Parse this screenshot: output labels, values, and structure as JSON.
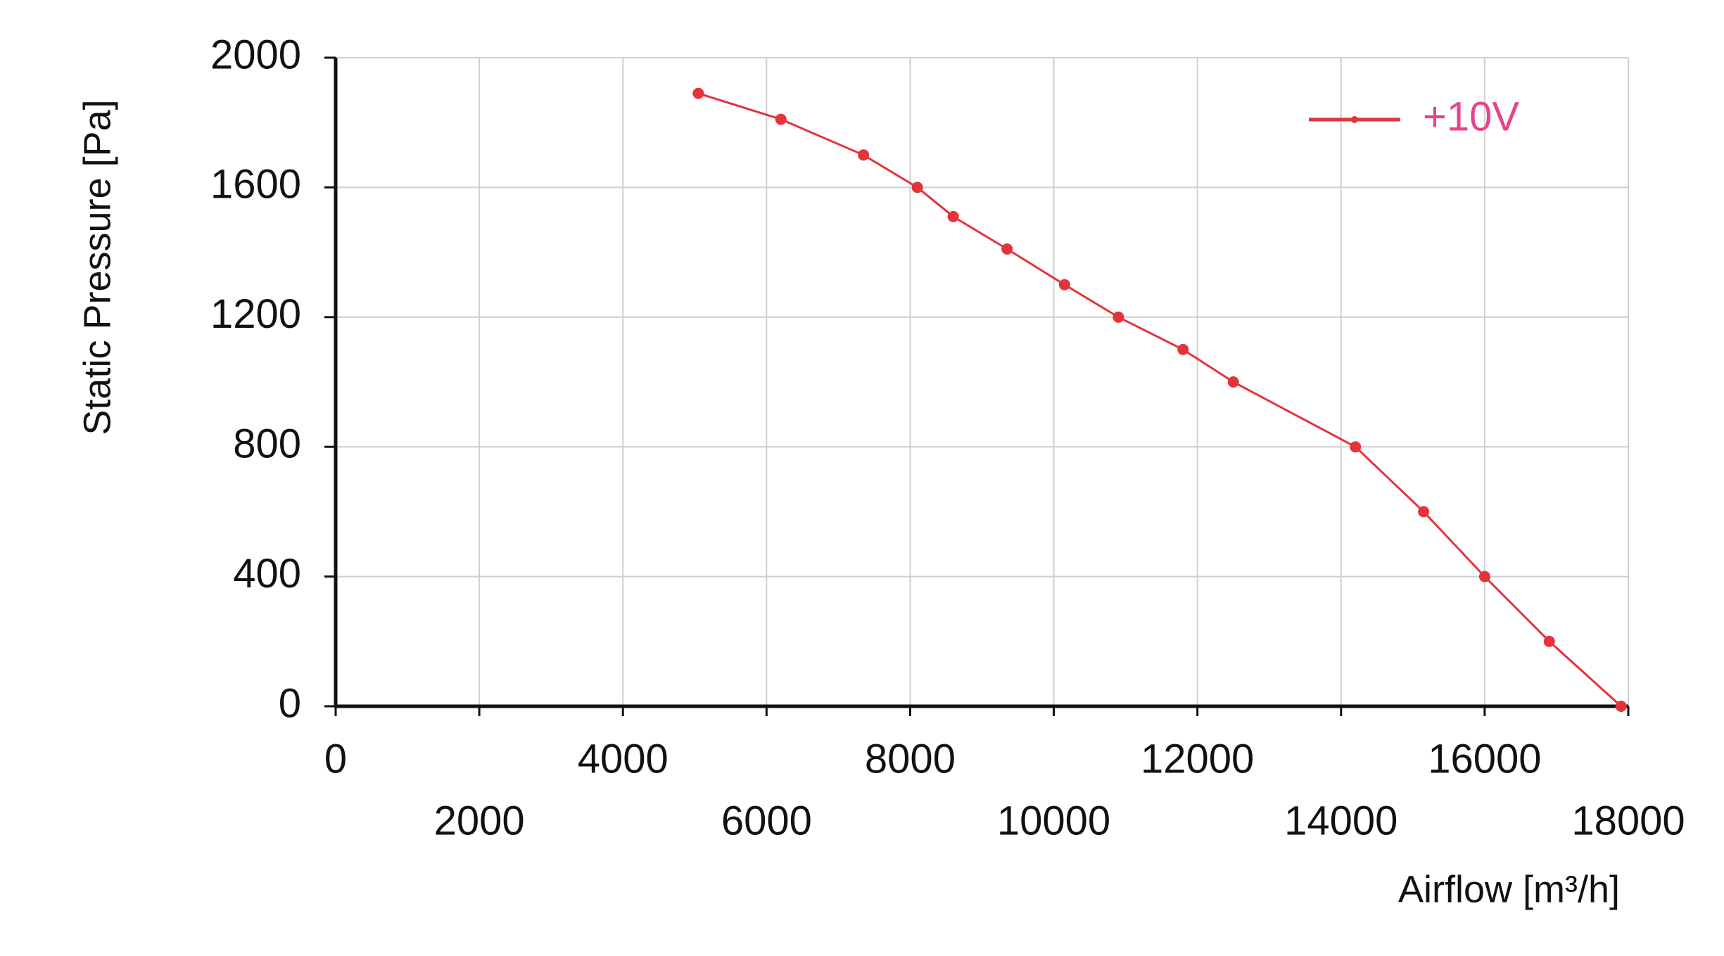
{
  "chart_data": {
    "type": "line",
    "x_label": "Airflow [m³/h]",
    "y_label": "Static Pressure [Pa]",
    "x": [
      5050,
      6200,
      7350,
      8100,
      8600,
      9350,
      10150,
      10900,
      11800,
      12500,
      14200,
      15150,
      16000,
      16900,
      17900
    ],
    "series": [
      {
        "name": "+10V",
        "color": "#e3343c",
        "values": [
          1890,
          1810,
          1700,
          1600,
          1510,
          1410,
          1300,
          1200,
          1100,
          1000,
          800,
          600,
          400,
          200,
          0
        ]
      }
    ],
    "xlim": [
      0,
      18000
    ],
    "xticks": [
      0,
      2000,
      4000,
      6000,
      8000,
      10000,
      12000,
      14000,
      16000,
      18000
    ],
    "ylim": [
      0,
      2000
    ],
    "yticks": [
      0,
      400,
      800,
      1200,
      1600,
      2000
    ],
    "grid": true,
    "legend": "top-right",
    "legend_text_color": "#e8428c"
  }
}
